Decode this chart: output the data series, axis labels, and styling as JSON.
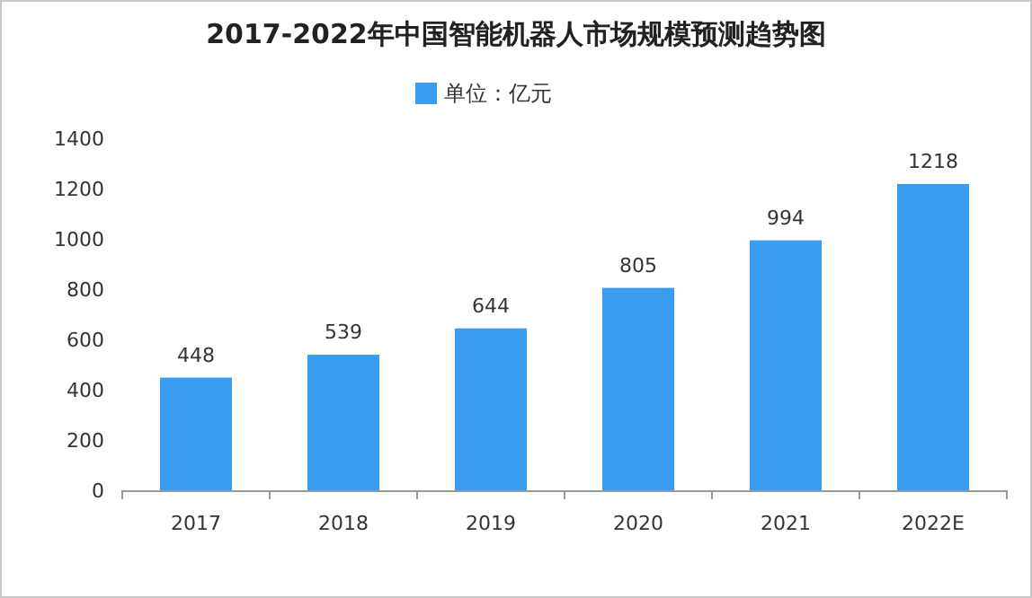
{
  "chart_data": {
    "type": "bar",
    "title": "2017-2022年中国智能机器人市场规模预测趋势图",
    "categories": [
      "2017",
      "2018",
      "2019",
      "2020",
      "2021",
      "2022E"
    ],
    "series": [
      {
        "name": "单位：亿元",
        "color": "#3a9cf0",
        "values": [
          448,
          539,
          644,
          805,
          994,
          1218
        ]
      }
    ],
    "ylim": [
      0,
      1400
    ],
    "yticks": [
      0,
      200,
      400,
      600,
      800,
      1000,
      1200,
      1400
    ],
    "data_labels": true,
    "legend": "top",
    "grid": false
  }
}
